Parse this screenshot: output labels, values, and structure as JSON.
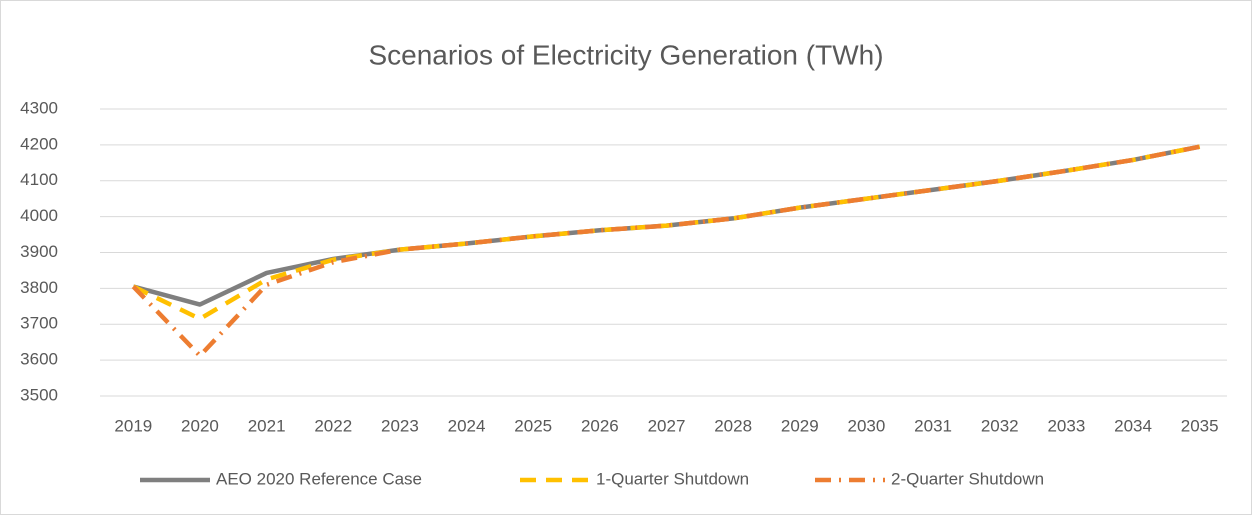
{
  "chart_data": {
    "type": "line",
    "title": "Scenarios of Electricity Generation (TWh)",
    "categories": [
      "2019",
      "2020",
      "2021",
      "2022",
      "2023",
      "2024",
      "2025",
      "2026",
      "2027",
      "2028",
      "2029",
      "2030",
      "2031",
      "2032",
      "2033",
      "2034",
      "2035"
    ],
    "series": [
      {
        "name": "AEO 2020 Reference Case",
        "color": "#7f7f7f",
        "dash": "solid",
        "values": [
          3805,
          3755,
          3843,
          3882,
          3908,
          3925,
          3945,
          3962,
          3975,
          3995,
          4025,
          4050,
          4075,
          4100,
          4128,
          4158,
          4195
        ]
      },
      {
        "name": "1-Quarter Shutdown",
        "color": "#ffc000",
        "dash": "dash",
        "values": [
          3805,
          3715,
          3825,
          3880,
          3908,
          3925,
          3945,
          3962,
          3975,
          3995,
          4025,
          4050,
          4075,
          4100,
          4128,
          4158,
          4195
        ]
      },
      {
        "name": "2-Quarter Shutdown",
        "color": "#ed7d31",
        "dash": "dashdot",
        "values": [
          3805,
          3612,
          3810,
          3873,
          3908,
          3925,
          3945,
          3962,
          3975,
          3995,
          4025,
          4050,
          4075,
          4100,
          4128,
          4158,
          4195
        ]
      }
    ],
    "ylim": [
      3500,
      4300
    ],
    "yticks": [
      3500,
      3600,
      3700,
      3800,
      3900,
      4000,
      4100,
      4200,
      4300
    ],
    "grid": true,
    "legend": "bottom"
  }
}
